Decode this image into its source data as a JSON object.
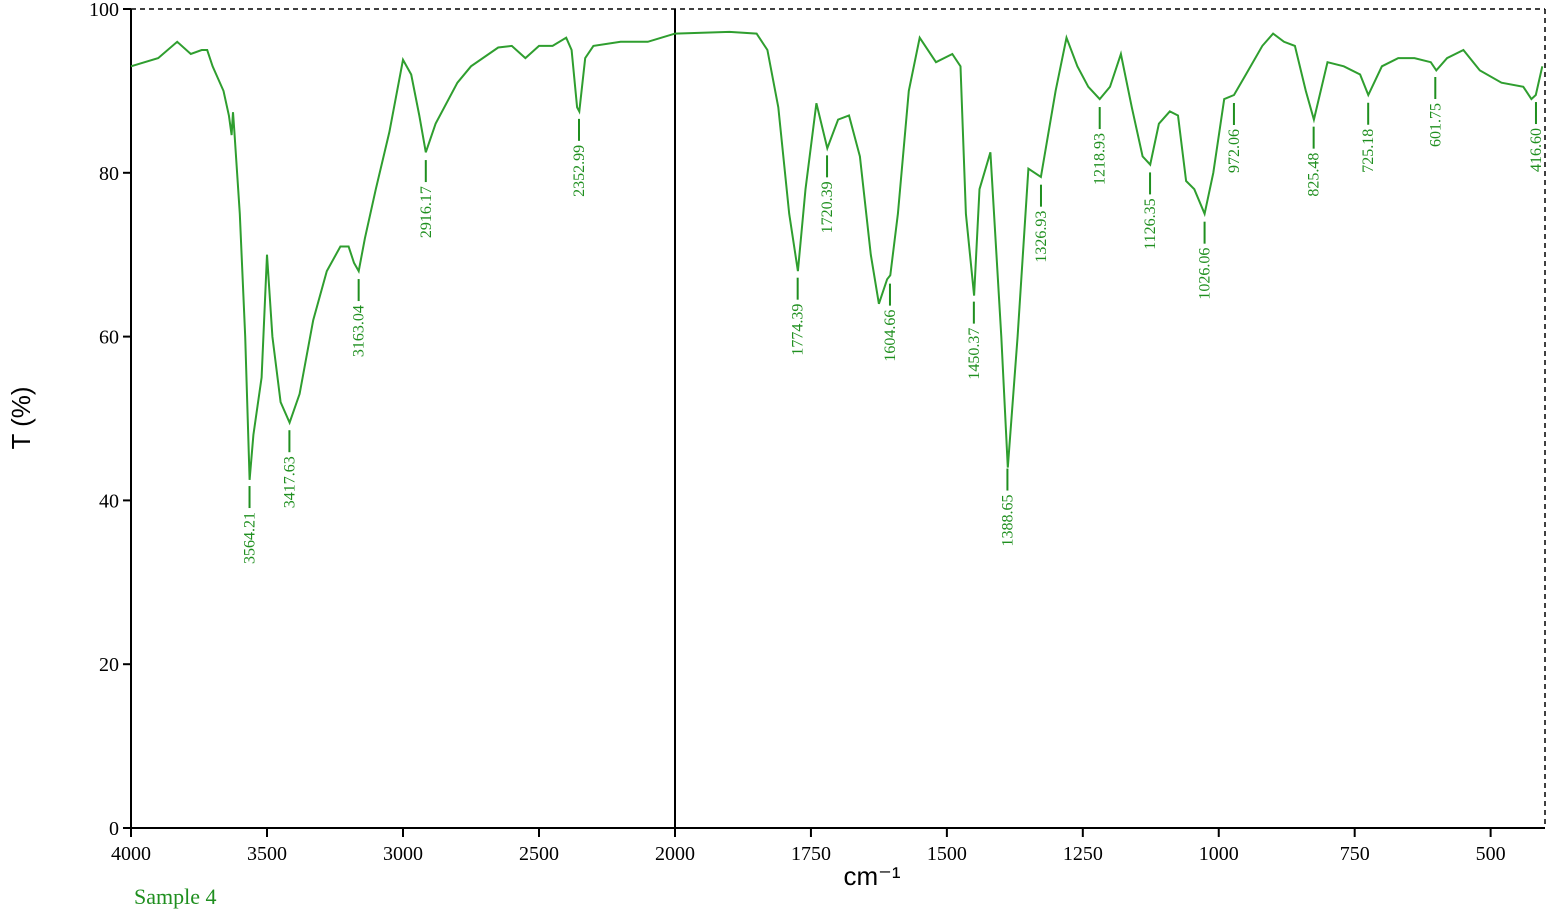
{
  "chart_data": {
    "type": "line",
    "x_label": "cm⁻¹",
    "y_label": "T (%)",
    "sample": "Sample 4",
    "xlim": [
      4000,
      400
    ],
    "x_scale_break": 2000,
    "xticks": [
      4000,
      3500,
      3000,
      2500,
      2000,
      1750,
      1500,
      1250,
      1000,
      750,
      500
    ],
    "ylim": [
      0,
      100
    ],
    "yticks": [
      0,
      20,
      40,
      60,
      80,
      100
    ],
    "series": [
      {
        "color": "#2f9e2f",
        "x": [
          4000,
          3900,
          3830,
          3780,
          3740,
          3720,
          3700,
          3660,
          3640,
          3630,
          3625,
          3620,
          3600,
          3580,
          3564,
          3550,
          3520,
          3500,
          3480,
          3450,
          3417,
          3380,
          3330,
          3280,
          3230,
          3200,
          3180,
          3163,
          3140,
          3100,
          3050,
          3000,
          2970,
          2940,
          2916,
          2880,
          2800,
          2750,
          2650,
          2600,
          2550,
          2500,
          2450,
          2400,
          2380,
          2360,
          2352,
          2330,
          2300,
          2200,
          2100,
          2050,
          2000,
          1900,
          1850,
          1830,
          1810,
          1790,
          1774,
          1760,
          1740,
          1720,
          1700,
          1680,
          1660,
          1640,
          1625,
          1610,
          1604,
          1590,
          1570,
          1550,
          1520,
          1490,
          1475,
          1465,
          1450,
          1440,
          1420,
          1400,
          1388,
          1370,
          1350,
          1327,
          1300,
          1280,
          1260,
          1240,
          1219,
          1200,
          1180,
          1160,
          1140,
          1126,
          1110,
          1090,
          1075,
          1060,
          1045,
          1026,
          1010,
          990,
          972,
          950,
          920,
          900,
          880,
          860,
          840,
          825,
          800,
          770,
          740,
          725,
          700,
          670,
          640,
          610,
          600,
          580,
          550,
          520,
          480,
          440,
          425,
          417,
          405
        ],
        "values": [
          93,
          94,
          96,
          94.5,
          95,
          95,
          93,
          90,
          87,
          84.6,
          87.4,
          85,
          75,
          60,
          42.5,
          48,
          55,
          70,
          60,
          52,
          49.5,
          53,
          62,
          68,
          71,
          71,
          69,
          68,
          72,
          78,
          85,
          93.8,
          92,
          87,
          82.5,
          86,
          91,
          93,
          95.3,
          95.5,
          94,
          95.5,
          95.5,
          96.5,
          95,
          88,
          87.5,
          94,
          95.5,
          96,
          96,
          96.5,
          97,
          97.2,
          97,
          95,
          88,
          75,
          68,
          78,
          88.5,
          83,
          86.5,
          87,
          82,
          70,
          64,
          67,
          67.5,
          75,
          90,
          96.5,
          93.5,
          94.5,
          93,
          75,
          65,
          78,
          82.5,
          60,
          44,
          60,
          80.5,
          79.5,
          90,
          96.5,
          93,
          90.5,
          89,
          90.5,
          94.5,
          88,
          82,
          81,
          86,
          87.5,
          87,
          79,
          78,
          75,
          80,
          89,
          89.5,
          92,
          95.5,
          97,
          96,
          95.5,
          90,
          86.5,
          93.5,
          93,
          92,
          89.5,
          93,
          94,
          94,
          93.5,
          92.5,
          94,
          95,
          92.5,
          91,
          90.5,
          89,
          89.5,
          93
        ]
      }
    ],
    "peaks": [
      {
        "value": 3564.21,
        "label": "3564.21"
      },
      {
        "value": 3417.63,
        "label": "3417.63"
      },
      {
        "value": 3163.04,
        "label": "3163.04"
      },
      {
        "value": 2916.17,
        "label": "2916.17"
      },
      {
        "value": 2352.99,
        "label": "2352.99"
      },
      {
        "value": 1774.39,
        "label": "1774.39"
      },
      {
        "value": 1720.39,
        "label": "1720.39"
      },
      {
        "value": 1604.66,
        "label": "1604.66"
      },
      {
        "value": 1450.37,
        "label": "1450.37"
      },
      {
        "value": 1388.65,
        "label": "1388.65"
      },
      {
        "value": 1326.93,
        "label": "1326.93"
      },
      {
        "value": 1218.93,
        "label": "1218.93"
      },
      {
        "value": 1126.35,
        "label": "1126.35"
      },
      {
        "value": 1026.06,
        "label": "1026.06"
      },
      {
        "value": 972.06,
        "label": "972.06"
      },
      {
        "value": 825.48,
        "label": "825.48"
      },
      {
        "value": 725.18,
        "label": "725.18"
      },
      {
        "value": 601.75,
        "label": "601.75"
      },
      {
        "value": 416.6,
        "label": "416.60"
      }
    ]
  }
}
